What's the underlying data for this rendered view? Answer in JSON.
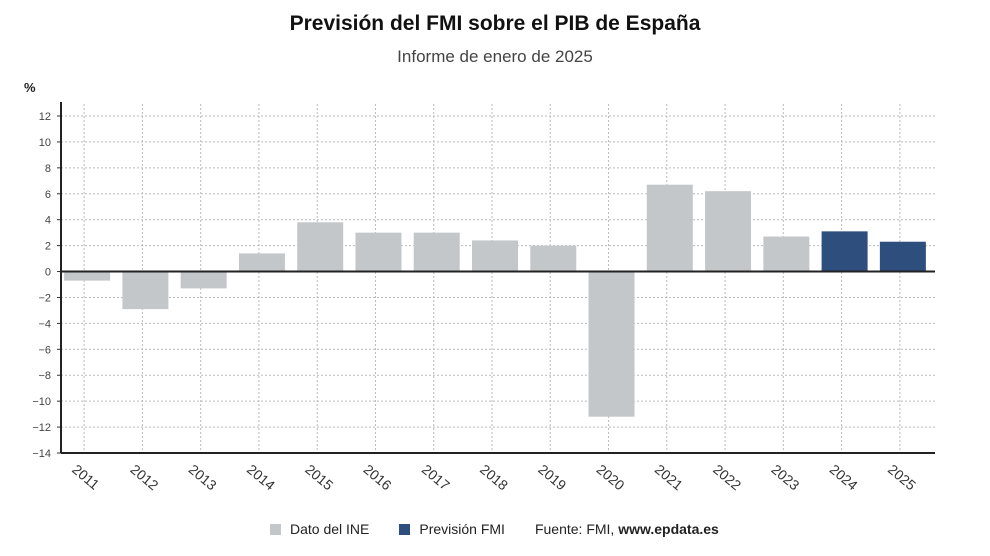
{
  "chart_data": {
    "type": "bar",
    "title": "Previsión del FMI sobre el PIB de España",
    "subtitle": "Informe de enero de 2025",
    "ylabel": "%",
    "xlabel": "",
    "ylim": [
      -14,
      12
    ],
    "yticks": [
      12,
      10,
      8,
      6,
      4,
      2,
      0,
      -2,
      -4,
      -6,
      -8,
      -10,
      -12,
      -14
    ],
    "grid": true,
    "legend_position": "bottom",
    "categories": [
      "2011",
      "2012",
      "2013",
      "2014",
      "2015",
      "2016",
      "2017",
      "2018",
      "2019",
      "2020",
      "2021",
      "2022",
      "2023",
      "2024",
      "2025"
    ],
    "values": [
      -0.7,
      -2.9,
      -1.3,
      1.4,
      3.8,
      3.0,
      3.0,
      2.4,
      2.0,
      -11.2,
      6.7,
      6.2,
      2.7,
      3.1,
      2.3
    ],
    "series_of_point": [
      "ine",
      "ine",
      "ine",
      "ine",
      "ine",
      "ine",
      "ine",
      "ine",
      "ine",
      "ine",
      "ine",
      "ine",
      "ine",
      "fmi",
      "fmi"
    ],
    "series": [
      {
        "key": "ine",
        "name": "Dato del INE",
        "color": "#c4c7c9"
      },
      {
        "key": "fmi",
        "name": "Previsión FMI",
        "color": "#2e4e7e"
      }
    ],
    "source_prefix": "Fuente: FMI, ",
    "source_site": "www.epdata.es"
  }
}
